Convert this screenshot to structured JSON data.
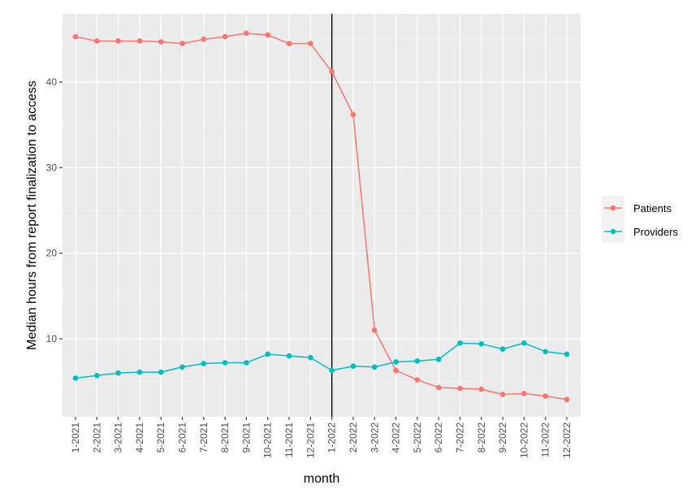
{
  "chart_data": {
    "type": "line",
    "title": "",
    "xlabel": "month",
    "ylabel": "Median hours from report finalization to access",
    "categories": [
      "1-2021",
      "2-2021",
      "3-2021",
      "4-2021",
      "5-2021",
      "6-2021",
      "7-2021",
      "8-2021",
      "9-2021",
      "10-2021",
      "11-2021",
      "12-2021",
      "1-2022",
      "2-2022",
      "3-2022",
      "4-2022",
      "5-2022",
      "6-2022",
      "7-2022",
      "8-2022",
      "9-2022",
      "10-2022",
      "11-2022",
      "12-2022"
    ],
    "series": [
      {
        "name": "Patients",
        "color": "#F8766D",
        "values": [
          45.3,
          44.8,
          44.8,
          44.8,
          44.7,
          44.5,
          45.0,
          45.3,
          45.7,
          45.5,
          44.5,
          44.5,
          41.2,
          36.2,
          11.0,
          6.3,
          5.2,
          4.3,
          4.2,
          4.1,
          3.5,
          3.6,
          3.3,
          2.9
        ]
      },
      {
        "name": "Providers",
        "color": "#00BFC4",
        "values": [
          5.4,
          5.7,
          6.0,
          6.1,
          6.1,
          6.7,
          7.1,
          7.2,
          7.2,
          8.2,
          8.0,
          7.8,
          6.3,
          6.8,
          6.7,
          7.3,
          7.4,
          7.6,
          9.5,
          9.4,
          8.8,
          9.5,
          8.5,
          8.2
        ]
      }
    ],
    "yticks": [
      10,
      20,
      30,
      40
    ],
    "ylim": [
      0.9,
      48.0
    ],
    "grid": true,
    "legend_position": "right",
    "annotations": [
      {
        "type": "vline",
        "x": "1-2022",
        "color": "#000000"
      }
    ]
  },
  "legend": {
    "items": [
      {
        "label": "Patients",
        "color": "#F8766D"
      },
      {
        "label": "Providers",
        "color": "#00BFC4"
      }
    ]
  }
}
